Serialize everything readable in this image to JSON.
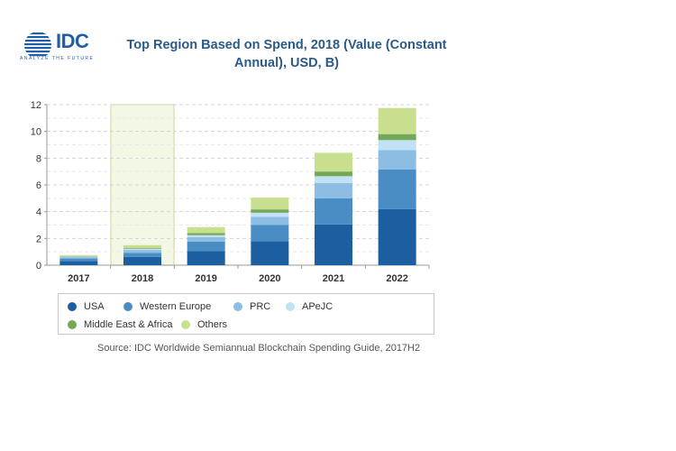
{
  "header": {
    "logo_text": "IDC",
    "logo_tagline": "ANALYZE THE FUTURE",
    "title_line1": "Top Region Based on Spend, 2018 (Value (Constant",
    "title_line2": "Annual), USD, B)"
  },
  "source": "Source: IDC Worldwide Semiannual Blockchain Spending Guide, 2017H2",
  "chart_data": {
    "type": "bar",
    "stacked": true,
    "title": "Top Region Based on Spend, 2018 (Value (Constant Annual), USD, B)",
    "categories": [
      "2017",
      "2018",
      "2019",
      "2020",
      "2021",
      "2022"
    ],
    "highlighted_category": "2018",
    "ylim": [
      0,
      12
    ],
    "yticks": [
      0,
      2,
      4,
      6,
      8,
      10,
      12
    ],
    "grid": true,
    "legend_position": "bottom",
    "series": [
      {
        "name": "USA",
        "color": "#1c5fa0",
        "values": [
          0.32,
          0.62,
          1.05,
          1.8,
          3.05,
          4.2
        ]
      },
      {
        "name": "Western Europe",
        "color": "#4a8dc4",
        "values": [
          0.18,
          0.3,
          0.72,
          1.2,
          1.95,
          2.95
        ]
      },
      {
        "name": "PRC",
        "color": "#8dbde3",
        "values": [
          0.1,
          0.22,
          0.32,
          0.62,
          1.15,
          1.45
        ]
      },
      {
        "name": "APeJC",
        "color": "#c2e1f5",
        "values": [
          0.05,
          0.1,
          0.15,
          0.3,
          0.5,
          0.75
        ]
      },
      {
        "name": "Middle East & Africa",
        "color": "#72a857",
        "values": [
          0.03,
          0.06,
          0.16,
          0.25,
          0.35,
          0.45
        ]
      },
      {
        "name": "Others",
        "color": "#c8df90",
        "values": [
          0.07,
          0.2,
          0.45,
          0.88,
          1.4,
          1.95
        ]
      }
    ]
  }
}
